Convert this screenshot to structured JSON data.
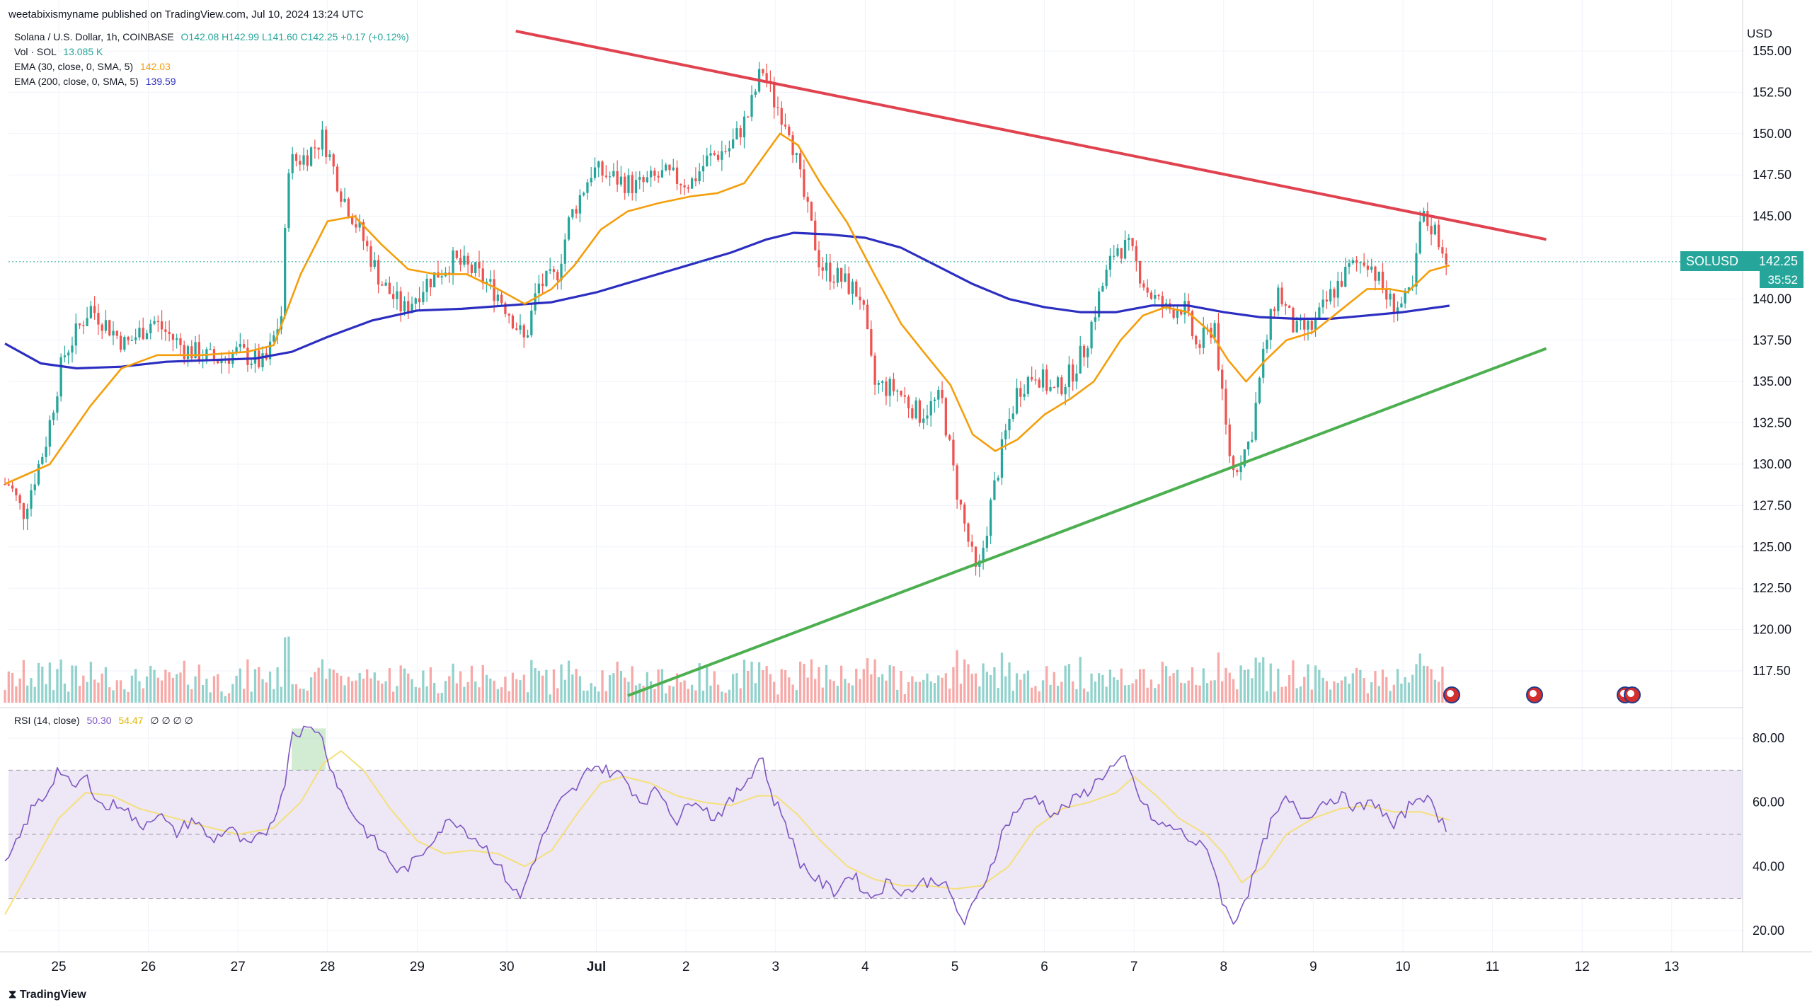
{
  "header": {
    "publisher": "weetabixismyname published on TradingView.com, Jul 10, 2024 13:24 UTC"
  },
  "legend": {
    "symbol_line": "Solana / U.S. Dollar, 1h, COINBASE",
    "ohlc": "O142.08 H142.99 L141.60 C142.25 +0.17 (+0.12%)",
    "vol_label": "Vol · SOL",
    "vol_value": "13.085 K",
    "ema30_label": "EMA (30, close, 0, SMA, 5)",
    "ema30_value": "142.03",
    "ema200_label": "EMA (200, close, 0, SMA, 5)",
    "ema200_value": "139.59",
    "rsi_label": "RSI (14, close)",
    "rsi_value": "50.30",
    "rsi_ma_value": "54.47",
    "rsi_extra": "∅ ∅ ∅ ∅"
  },
  "price_scale": {
    "currency": "USD",
    "symbol_badge": "SOLUSD",
    "last_price": "142.25",
    "countdown": "35:52"
  },
  "brand": "TradingView",
  "colors": {
    "up": "#26a69a",
    "down": "#ef5350",
    "ema30": "#f59e0b",
    "ema200": "#2b2ec0",
    "resistance": "#e0434f",
    "support": "#4caf50",
    "rsi_line": "#7e57c2",
    "rsi_ma": "#f5e07a",
    "rsi_band": "#ede7f6"
  },
  "chart_data": [
    {
      "type": "candlestick",
      "title": "",
      "x_ticks": [
        "25",
        "26",
        "27",
        "28",
        "29",
        "30",
        "Jul",
        "2",
        "3",
        "4",
        "5",
        "6",
        "7",
        "8",
        "9",
        "10",
        "11",
        "12",
        "13"
      ],
      "y_ticks": [
        "117.50",
        "120.00",
        "122.50",
        "125.00",
        "127.50",
        "130.00",
        "132.50",
        "135.00",
        "137.50",
        "140.00",
        "142.50",
        "145.00",
        "147.50",
        "150.00",
        "152.50",
        "155.00"
      ],
      "ylim": [
        115.5,
        156.5
      ],
      "xlim": [
        24.4,
        14.0
      ],
      "close_anchors": [
        [
          24.45,
          128.8
        ],
        [
          24.6,
          127.0
        ],
        [
          24.85,
          131.2
        ],
        [
          25.05,
          136.5
        ],
        [
          25.35,
          139.5
        ],
        [
          25.75,
          137.2
        ],
        [
          26.05,
          138.7
        ],
        [
          26.4,
          137.0
        ],
        [
          26.75,
          136.3
        ],
        [
          27.0,
          136.8
        ],
        [
          27.3,
          136.0
        ],
        [
          27.5,
          139.3
        ],
        [
          27.55,
          148.2
        ],
        [
          27.75,
          148.6
        ],
        [
          27.95,
          149.8
        ],
        [
          28.15,
          146.5
        ],
        [
          28.35,
          144.2
        ],
        [
          28.6,
          141.0
        ],
        [
          28.85,
          139.3
        ],
        [
          29.1,
          141.0
        ],
        [
          29.4,
          142.3
        ],
        [
          29.65,
          141.6
        ],
        [
          29.9,
          140.3
        ],
        [
          30.05,
          139.0
        ],
        [
          30.2,
          137.4
        ],
        [
          30.35,
          140.8
        ],
        [
          30.55,
          141.3
        ],
        [
          30.7,
          144.8
        ],
        [
          30.95,
          147.8
        ],
        [
          31.15,
          147.4
        ],
        [
          31.45,
          146.8
        ],
        [
          31.75,
          147.5
        ],
        [
          32.05,
          147.0
        ],
        [
          32.25,
          148.5
        ],
        [
          32.5,
          149.2
        ],
        [
          32.7,
          151.2
        ],
        [
          32.85,
          154.0
        ],
        [
          32.98,
          152.0
        ],
        [
          33.15,
          150.5
        ],
        [
          33.3,
          146.5
        ],
        [
          33.5,
          142.0
        ],
        [
          33.7,
          141.3
        ],
        [
          33.95,
          140.2
        ],
        [
          34.1,
          134.8
        ],
        [
          34.35,
          134.5
        ],
        [
          34.6,
          133.0
        ],
        [
          34.85,
          134.0
        ],
        [
          35.0,
          129.0
        ],
        [
          35.1,
          126.5
        ],
        [
          35.25,
          123.0
        ],
        [
          35.4,
          127.5
        ],
        [
          35.55,
          131.5
        ],
        [
          35.7,
          134.5
        ],
        [
          35.9,
          135.6
        ],
        [
          36.1,
          134.3
        ],
        [
          36.3,
          135.5
        ],
        [
          36.45,
          137.0
        ],
        [
          36.6,
          140.0
        ],
        [
          36.8,
          143.2
        ],
        [
          36.95,
          143.0
        ],
        [
          37.15,
          140.5
        ],
        [
          37.35,
          139.3
        ],
        [
          37.55,
          139.6
        ],
        [
          37.7,
          137.0
        ],
        [
          37.9,
          138.5
        ],
        [
          38.0,
          133.0
        ],
        [
          38.1,
          129.5
        ],
        [
          38.3,
          131.5
        ],
        [
          38.45,
          136.8
        ],
        [
          38.6,
          140.6
        ],
        [
          38.8,
          138.0
        ],
        [
          39.0,
          138.3
        ],
        [
          39.2,
          140.3
        ],
        [
          39.4,
          141.8
        ],
        [
          39.6,
          142.5
        ],
        [
          39.85,
          139.8
        ],
        [
          40.0,
          139.6
        ],
        [
          40.12,
          140.6
        ],
        [
          40.2,
          145.0
        ],
        [
          40.35,
          144.2
        ],
        [
          40.45,
          143.0
        ],
        [
          40.52,
          142.25
        ]
      ],
      "ema30_points": [
        [
          24.4,
          128.8
        ],
        [
          24.9,
          130.0
        ],
        [
          25.35,
          133.5
        ],
        [
          25.7,
          135.8
        ],
        [
          26.1,
          136.6
        ],
        [
          26.6,
          136.6
        ],
        [
          27.1,
          136.8
        ],
        [
          27.4,
          137.2
        ],
        [
          27.7,
          141.5
        ],
        [
          28.0,
          144.7
        ],
        [
          28.3,
          145.0
        ],
        [
          28.6,
          143.3
        ],
        [
          28.9,
          141.8
        ],
        [
          29.2,
          141.5
        ],
        [
          29.55,
          141.5
        ],
        [
          29.9,
          140.6
        ],
        [
          30.2,
          139.7
        ],
        [
          30.5,
          140.6
        ],
        [
          30.75,
          142.0
        ],
        [
          31.05,
          144.2
        ],
        [
          31.35,
          145.3
        ],
        [
          31.7,
          145.8
        ],
        [
          32.05,
          146.2
        ],
        [
          32.35,
          146.4
        ],
        [
          32.65,
          147.0
        ],
        [
          32.85,
          148.5
        ],
        [
          33.05,
          150.0
        ],
        [
          33.25,
          149.3
        ],
        [
          33.5,
          147.0
        ],
        [
          33.8,
          144.6
        ],
        [
          34.1,
          141.5
        ],
        [
          34.4,
          138.5
        ],
        [
          34.65,
          136.8
        ],
        [
          34.95,
          134.8
        ],
        [
          35.2,
          131.8
        ],
        [
          35.45,
          130.8
        ],
        [
          35.7,
          131.5
        ],
        [
          36.0,
          133.0
        ],
        [
          36.3,
          134.0
        ],
        [
          36.55,
          135.0
        ],
        [
          36.85,
          137.5
        ],
        [
          37.1,
          139.0
        ],
        [
          37.35,
          139.5
        ],
        [
          37.6,
          139.2
        ],
        [
          37.85,
          138.0
        ],
        [
          38.05,
          136.3
        ],
        [
          38.25,
          135.0
        ],
        [
          38.45,
          136.2
        ],
        [
          38.7,
          137.5
        ],
        [
          39.0,
          138.0
        ],
        [
          39.3,
          139.3
        ],
        [
          39.6,
          140.6
        ],
        [
          39.85,
          140.6
        ],
        [
          40.05,
          140.4
        ],
        [
          40.3,
          141.7
        ],
        [
          40.52,
          142.03
        ]
      ],
      "ema200_points": [
        [
          24.4,
          137.3
        ],
        [
          24.8,
          136.1
        ],
        [
          25.2,
          135.8
        ],
        [
          25.7,
          135.9
        ],
        [
          26.2,
          136.2
        ],
        [
          26.7,
          136.3
        ],
        [
          27.2,
          136.4
        ],
        [
          27.6,
          136.8
        ],
        [
          28.0,
          137.7
        ],
        [
          28.5,
          138.7
        ],
        [
          29.0,
          139.3
        ],
        [
          29.5,
          139.4
        ],
        [
          30.0,
          139.6
        ],
        [
          30.5,
          139.8
        ],
        [
          31.0,
          140.4
        ],
        [
          31.5,
          141.2
        ],
        [
          32.0,
          142.0
        ],
        [
          32.5,
          142.8
        ],
        [
          32.9,
          143.6
        ],
        [
          33.2,
          144.0
        ],
        [
          33.6,
          143.9
        ],
        [
          34.0,
          143.7
        ],
        [
          34.4,
          143.1
        ],
        [
          34.8,
          142.0
        ],
        [
          35.2,
          140.9
        ],
        [
          35.6,
          140.0
        ],
        [
          36.0,
          139.5
        ],
        [
          36.4,
          139.2
        ],
        [
          36.8,
          139.2
        ],
        [
          37.2,
          139.6
        ],
        [
          37.6,
          139.6
        ],
        [
          38.0,
          139.2
        ],
        [
          38.4,
          138.9
        ],
        [
          38.8,
          138.8
        ],
        [
          39.2,
          138.8
        ],
        [
          39.6,
          139.0
        ],
        [
          40.0,
          139.2
        ],
        [
          40.52,
          139.59
        ]
      ],
      "resistance_line": {
        "from": [
          30.1,
          156.2
        ],
        "to": [
          41.6,
          143.6
        ]
      },
      "support_line": {
        "from": [
          31.35,
          116.0
        ],
        "to": [
          41.6,
          137.0
        ]
      }
    },
    {
      "type": "bar",
      "title": "",
      "series_name": "Vol · SOL",
      "last_value": "13.085 K"
    },
    {
      "type": "line",
      "title": "",
      "series": [
        {
          "name": "RSI (14, close)",
          "last_value": "50.30"
        },
        {
          "name": "",
          "last_value": "54.47"
        }
      ],
      "y_ticks": [
        "20.00",
        "40.00",
        "60.00",
        "80.00"
      ],
      "ylim": [
        15,
        85
      ],
      "bands": {
        "upper": 70,
        "middle": 50,
        "lower": 30
      },
      "rsi_points": [
        [
          24.4,
          40
        ],
        [
          24.55,
          48
        ],
        [
          24.7,
          58
        ],
        [
          24.85,
          62
        ],
        [
          25.0,
          71
        ],
        [
          25.15,
          64
        ],
        [
          25.3,
          68
        ],
        [
          25.5,
          58
        ],
        [
          25.7,
          60
        ],
        [
          25.9,
          52
        ],
        [
          26.1,
          57
        ],
        [
          26.3,
          50
        ],
        [
          26.5,
          55
        ],
        [
          26.7,
          48
        ],
        [
          26.9,
          52
        ],
        [
          27.1,
          46
        ],
        [
          27.3,
          50
        ],
        [
          27.5,
          62
        ],
        [
          27.6,
          82
        ],
        [
          27.9,
          83
        ],
        [
          28.05,
          70
        ],
        [
          28.2,
          60
        ],
        [
          28.4,
          52
        ],
        [
          28.6,
          45
        ],
        [
          28.8,
          38
        ],
        [
          29.0,
          42
        ],
        [
          29.2,
          50
        ],
        [
          29.4,
          55
        ],
        [
          29.6,
          50
        ],
        [
          29.8,
          45
        ],
        [
          30.0,
          36
        ],
        [
          30.15,
          30
        ],
        [
          30.3,
          42
        ],
        [
          30.45,
          52
        ],
        [
          30.6,
          60
        ],
        [
          30.8,
          65
        ],
        [
          30.95,
          72
        ],
        [
          31.1,
          70
        ],
        [
          31.3,
          68
        ],
        [
          31.5,
          60
        ],
        [
          31.7,
          64
        ],
        [
          31.9,
          54
        ],
        [
          32.1,
          62
        ],
        [
          32.3,
          55
        ],
        [
          32.5,
          60
        ],
        [
          32.7,
          68
        ],
        [
          32.85,
          75
        ],
        [
          32.95,
          62
        ],
        [
          33.1,
          55
        ],
        [
          33.25,
          42
        ],
        [
          33.45,
          36
        ],
        [
          33.65,
          32
        ],
        [
          33.85,
          38
        ],
        [
          34.05,
          30
        ],
        [
          34.25,
          35
        ],
        [
          34.45,
          32
        ],
        [
          34.65,
          35
        ],
        [
          34.85,
          36
        ],
        [
          35.0,
          28
        ],
        [
          35.1,
          22
        ],
        [
          35.25,
          30
        ],
        [
          35.4,
          40
        ],
        [
          35.55,
          52
        ],
        [
          35.7,
          58
        ],
        [
          35.9,
          62
        ],
        [
          36.1,
          56
        ],
        [
          36.3,
          60
        ],
        [
          36.5,
          64
        ],
        [
          36.7,
          70
        ],
        [
          36.9,
          73
        ],
        [
          37.05,
          62
        ],
        [
          37.25,
          53
        ],
        [
          37.45,
          52
        ],
        [
          37.65,
          48
        ],
        [
          37.85,
          44
        ],
        [
          38.0,
          28
        ],
        [
          38.1,
          22
        ],
        [
          38.3,
          34
        ],
        [
          38.5,
          52
        ],
        [
          38.7,
          61
        ],
        [
          38.9,
          55
        ],
        [
          39.1,
          60
        ],
        [
          39.3,
          62
        ],
        [
          39.5,
          58
        ],
        [
          39.7,
          60
        ],
        [
          39.9,
          52
        ],
        [
          40.05,
          58
        ],
        [
          40.2,
          63
        ],
        [
          40.35,
          58
        ],
        [
          40.52,
          50.3
        ]
      ],
      "rsi_ma_points": [
        [
          24.4,
          25
        ],
        [
          24.7,
          40
        ],
        [
          25.0,
          55
        ],
        [
          25.3,
          63
        ],
        [
          25.6,
          62
        ],
        [
          25.9,
          58
        ],
        [
          26.3,
          55
        ],
        [
          26.7,
          52
        ],
        [
          27.0,
          50
        ],
        [
          27.4,
          52
        ],
        [
          27.7,
          60
        ],
        [
          27.95,
          72
        ],
        [
          28.15,
          76
        ],
        [
          28.4,
          70
        ],
        [
          28.7,
          58
        ],
        [
          29.0,
          48
        ],
        [
          29.3,
          44
        ],
        [
          29.6,
          45
        ],
        [
          29.9,
          44
        ],
        [
          30.2,
          40
        ],
        [
          30.5,
          45
        ],
        [
          30.8,
          57
        ],
        [
          31.05,
          66
        ],
        [
          31.3,
          68
        ],
        [
          31.6,
          66
        ],
        [
          31.9,
          62
        ],
        [
          32.2,
          60
        ],
        [
          32.5,
          59
        ],
        [
          32.8,
          62
        ],
        [
          33.0,
          62
        ],
        [
          33.25,
          56
        ],
        [
          33.5,
          48
        ],
        [
          33.8,
          40
        ],
        [
          34.1,
          36
        ],
        [
          34.4,
          34
        ],
        [
          34.7,
          34
        ],
        [
          35.0,
          33
        ],
        [
          35.3,
          34
        ],
        [
          35.6,
          40
        ],
        [
          35.9,
          52
        ],
        [
          36.2,
          58
        ],
        [
          36.5,
          60
        ],
        [
          36.8,
          63
        ],
        [
          37.0,
          68
        ],
        [
          37.25,
          62
        ],
        [
          37.5,
          55
        ],
        [
          37.8,
          50
        ],
        [
          38.0,
          44
        ],
        [
          38.2,
          35
        ],
        [
          38.45,
          40
        ],
        [
          38.7,
          50
        ],
        [
          39.0,
          55
        ],
        [
          39.3,
          58
        ],
        [
          39.6,
          59
        ],
        [
          39.9,
          57
        ],
        [
          40.2,
          57
        ],
        [
          40.52,
          54.47
        ]
      ]
    }
  ]
}
